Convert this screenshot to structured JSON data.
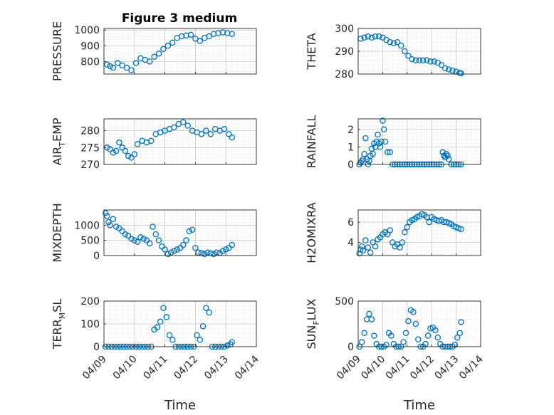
{
  "figure": {
    "title": "Figure 3 medium"
  },
  "colors": {
    "marker": "#0072bd",
    "axis": "#262626",
    "grid": "#b3b3b3",
    "background": "#ffffff"
  },
  "chart_data": [
    {
      "type": "scatter",
      "ylabel": "PRESSURE",
      "ylim": [
        720,
        1010
      ],
      "yticks": [
        800,
        900,
        1000
      ],
      "xlim": [
        0,
        5
      ],
      "xticklabels_shown": false,
      "grid": true,
      "x": [
        0.1,
        0.2,
        0.3,
        0.45,
        0.6,
        0.75,
        0.9,
        1.05,
        1.2,
        1.35,
        1.5,
        1.65,
        1.8,
        1.95,
        2.1,
        2.25,
        2.4,
        2.55,
        2.7,
        2.85,
        3.0,
        3.15,
        3.3,
        3.45,
        3.6,
        3.75,
        3.9,
        4.05,
        4.2
      ],
      "y": [
        780,
        770,
        760,
        790,
        775,
        760,
        745,
        790,
        820,
        810,
        800,
        830,
        850,
        880,
        900,
        920,
        950,
        960,
        965,
        970,
        945,
        930,
        950,
        960,
        975,
        980,
        985,
        980,
        975
      ]
    },
    {
      "type": "scatter",
      "ylabel": "THETA",
      "ylim": [
        280,
        300
      ],
      "yticks": [
        280,
        290,
        300
      ],
      "xlim": [
        0,
        5
      ],
      "xticklabels_shown": false,
      "grid": true,
      "x": [
        0.1,
        0.25,
        0.4,
        0.55,
        0.7,
        0.85,
        1.0,
        1.15,
        1.3,
        1.45,
        1.6,
        1.75,
        1.9,
        2.05,
        2.2,
        2.35,
        2.5,
        2.65,
        2.8,
        2.95,
        3.1,
        3.25,
        3.4,
        3.55,
        3.7,
        3.85,
        4.0,
        4.15,
        4.2
      ],
      "y": [
        295.5,
        296,
        296.5,
        296,
        296.5,
        296.5,
        296,
        295,
        294,
        293.5,
        294,
        292.5,
        290,
        288,
        286.5,
        286,
        286,
        286,
        286,
        285.5,
        285.5,
        285,
        284,
        282.5,
        282,
        281.5,
        281,
        280.5,
        280.3
      ]
    },
    {
      "type": "scatter",
      "ylabel": "AIR_TEMP",
      "ylim": [
        270,
        283.5
      ],
      "yticks": [
        270,
        275,
        280
      ],
      "xlim": [
        0,
        5
      ],
      "xticklabels_shown": false,
      "grid": true,
      "x": [
        0.1,
        0.2,
        0.3,
        0.4,
        0.5,
        0.6,
        0.7,
        0.8,
        0.9,
        1.0,
        1.1,
        1.25,
        1.4,
        1.55,
        1.7,
        1.85,
        2.0,
        2.15,
        2.3,
        2.45,
        2.6,
        2.75,
        2.9,
        3.05,
        3.2,
        3.35,
        3.5,
        3.65,
        3.8,
        3.95,
        4.1,
        4.2
      ],
      "y": [
        275,
        274.5,
        273.5,
        274,
        276.5,
        275,
        274,
        272.5,
        272,
        273,
        276,
        277,
        276.5,
        277,
        279,
        279.5,
        280,
        280.5,
        281,
        282,
        282.5,
        281.5,
        280,
        279.5,
        279,
        280,
        279,
        280.5,
        280,
        280.5,
        279,
        278
      ]
    },
    {
      "type": "scatter",
      "ylabel": "RAINFALL",
      "ylim": [
        0,
        2.6
      ],
      "yticks": [
        0,
        1,
        2
      ],
      "xlim": [
        0,
        5
      ],
      "xticklabels_shown": false,
      "grid": true,
      "x": [
        0.05,
        0.1,
        0.15,
        0.2,
        0.25,
        0.3,
        0.35,
        0.4,
        0.45,
        0.5,
        0.55,
        0.6,
        0.65,
        0.7,
        0.75,
        0.8,
        0.85,
        0.9,
        0.95,
        1.0,
        1.05,
        1.1,
        1.2,
        1.3,
        1.4,
        1.5,
        1.6,
        1.7,
        1.8,
        1.9,
        2.0,
        2.1,
        2.2,
        2.3,
        2.4,
        2.5,
        2.6,
        2.7,
        2.8,
        2.9,
        3.0,
        3.1,
        3.2,
        3.3,
        3.4,
        3.45,
        3.5,
        3.55,
        3.6,
        3.65,
        3.7,
        3.8,
        3.9,
        4.0,
        4.1,
        4.2
      ],
      "y": [
        0,
        0.1,
        0.2,
        0.3,
        0.6,
        1.5,
        0.3,
        0,
        0.2,
        0.5,
        0.9,
        0.6,
        1.2,
        1.0,
        1.3,
        1.7,
        1.2,
        1.0,
        1.3,
        2.5,
        2.0,
        1.3,
        0.7,
        0.7,
        0,
        0,
        0,
        0,
        0,
        0,
        0,
        0,
        0,
        0,
        0,
        0,
        0,
        0,
        0,
        0,
        0,
        0,
        0,
        0,
        0,
        0.7,
        0.5,
        0.4,
        0.6,
        0.5,
        0.3,
        0,
        0,
        0,
        0,
        0
      ]
    },
    {
      "type": "scatter",
      "ylabel": "MIXDEPTH",
      "ylim": [
        0,
        1500
      ],
      "yticks": [
        0,
        500,
        1000
      ],
      "xlim": [
        0,
        5
      ],
      "xticklabels_shown": false,
      "grid": true,
      "x": [
        0.05,
        0.1,
        0.15,
        0.2,
        0.3,
        0.4,
        0.5,
        0.6,
        0.7,
        0.8,
        0.9,
        1.0,
        1.1,
        1.2,
        1.3,
        1.4,
        1.5,
        1.6,
        1.7,
        1.8,
        1.9,
        2.0,
        2.1,
        2.2,
        2.3,
        2.4,
        2.5,
        2.6,
        2.7,
        2.8,
        2.9,
        3.0,
        3.1,
        3.2,
        3.3,
        3.4,
        3.5,
        3.6,
        3.7,
        3.8,
        3.9,
        4.0,
        4.1,
        4.2
      ],
      "y": [
        1400,
        1300,
        1100,
        1000,
        1200,
        950,
        900,
        800,
        700,
        650,
        550,
        500,
        450,
        600,
        550,
        500,
        400,
        950,
        700,
        500,
        300,
        200,
        50,
        100,
        150,
        200,
        250,
        350,
        500,
        800,
        850,
        250,
        100,
        80,
        50,
        100,
        80,
        50,
        100,
        80,
        150,
        200,
        250,
        350
      ]
    },
    {
      "type": "scatter",
      "ylabel": "H2OMIXRA",
      "ylim": [
        2.7,
        7.2
      ],
      "yticks": [
        4,
        6
      ],
      "xlim": [
        0,
        5
      ],
      "xticklabels_shown": false,
      "grid": true,
      "x": [
        0.05,
        0.1,
        0.15,
        0.2,
        0.3,
        0.4,
        0.5,
        0.6,
        0.7,
        0.8,
        0.9,
        1.0,
        1.1,
        1.2,
        1.3,
        1.4,
        1.5,
        1.6,
        1.7,
        1.8,
        1.9,
        2.0,
        2.1,
        2.2,
        2.3,
        2.4,
        2.5,
        2.6,
        2.7,
        2.8,
        2.9,
        3.0,
        3.1,
        3.2,
        3.3,
        3.4,
        3.5,
        3.6,
        3.7,
        3.8,
        3.9,
        4.0,
        4.1,
        4.2
      ],
      "y": [
        2.9,
        3.3,
        3.6,
        3.2,
        4.2,
        3.5,
        3.0,
        4.0,
        3.6,
        4.3,
        4.5,
        4.8,
        5.0,
        4.8,
        5.2,
        4.0,
        3.6,
        3.8,
        3.5,
        4.0,
        5.0,
        5.5,
        6.0,
        6.2,
        6.3,
        6.5,
        6.6,
        6.8,
        6.7,
        6.5,
        6.0,
        6.5,
        6.3,
        6.2,
        6.1,
        6.2,
        6.0,
        6.0,
        5.9,
        5.8,
        5.6,
        5.5,
        5.4,
        5.3
      ]
    },
    {
      "type": "scatter",
      "ylabel": "TERR_MSL",
      "ylim": [
        0,
        200
      ],
      "yticks": [
        0,
        100,
        200
      ],
      "xlim": [
        0,
        5
      ],
      "xtick_positions": [
        0,
        1,
        2,
        3,
        4,
        5
      ],
      "xticklabels": [
        "04/09",
        "04/10",
        "04/11",
        "04/12",
        "04/13",
        "04/14"
      ],
      "xlabel": "Time",
      "grid": true,
      "x": [
        0.05,
        0.15,
        0.25,
        0.35,
        0.45,
        0.55,
        0.65,
        0.75,
        0.85,
        0.95,
        1.05,
        1.15,
        1.25,
        1.35,
        1.45,
        1.55,
        1.65,
        1.75,
        1.85,
        1.95,
        2.05,
        2.15,
        2.25,
        2.35,
        2.45,
        2.55,
        2.65,
        2.75,
        2.85,
        2.95,
        3.05,
        3.15,
        3.25,
        3.35,
        3.45,
        3.55,
        3.65,
        3.75,
        3.85,
        3.95,
        4.05,
        4.15,
        4.2
      ],
      "y": [
        0,
        0,
        0,
        0,
        0,
        0,
        0,
        0,
        0,
        0,
        0,
        0,
        0,
        0,
        0,
        0,
        75,
        85,
        110,
        170,
        130,
        50,
        30,
        0,
        0,
        0,
        0,
        0,
        0,
        0,
        50,
        30,
        90,
        170,
        150,
        0,
        0,
        0,
        0,
        0,
        5,
        10,
        20
      ]
    },
    {
      "type": "scatter",
      "ylabel": "SUN_FLUX",
      "ylim": [
        0,
        500
      ],
      "yticks": [
        0,
        500
      ],
      "xlim": [
        0,
        5
      ],
      "xtick_positions": [
        0,
        1,
        2,
        3,
        4,
        5
      ],
      "xticklabels": [
        "04/09",
        "04/10",
        "04/11",
        "04/12",
        "04/13",
        "04/14"
      ],
      "xlabel": "Time",
      "grid": true,
      "x": [
        0.05,
        0.15,
        0.25,
        0.35,
        0.45,
        0.55,
        0.65,
        0.75,
        0.85,
        0.95,
        1.05,
        1.15,
        1.25,
        1.35,
        1.45,
        1.55,
        1.65,
        1.75,
        1.85,
        1.95,
        2.05,
        2.15,
        2.25,
        2.35,
        2.45,
        2.55,
        2.65,
        2.75,
        2.85,
        2.95,
        3.05,
        3.15,
        3.25,
        3.35,
        3.45,
        3.55,
        3.65,
        3.75,
        3.85,
        3.95,
        4.05,
        4.15,
        4.2
      ],
      "y": [
        0,
        50,
        150,
        300,
        360,
        300,
        120,
        30,
        0,
        0,
        0,
        20,
        150,
        120,
        30,
        0,
        0,
        0,
        50,
        150,
        280,
        400,
        380,
        250,
        80,
        0,
        0,
        30,
        120,
        200,
        210,
        180,
        100,
        30,
        0,
        0,
        0,
        0,
        0,
        20,
        100,
        150,
        270
      ]
    }
  ]
}
